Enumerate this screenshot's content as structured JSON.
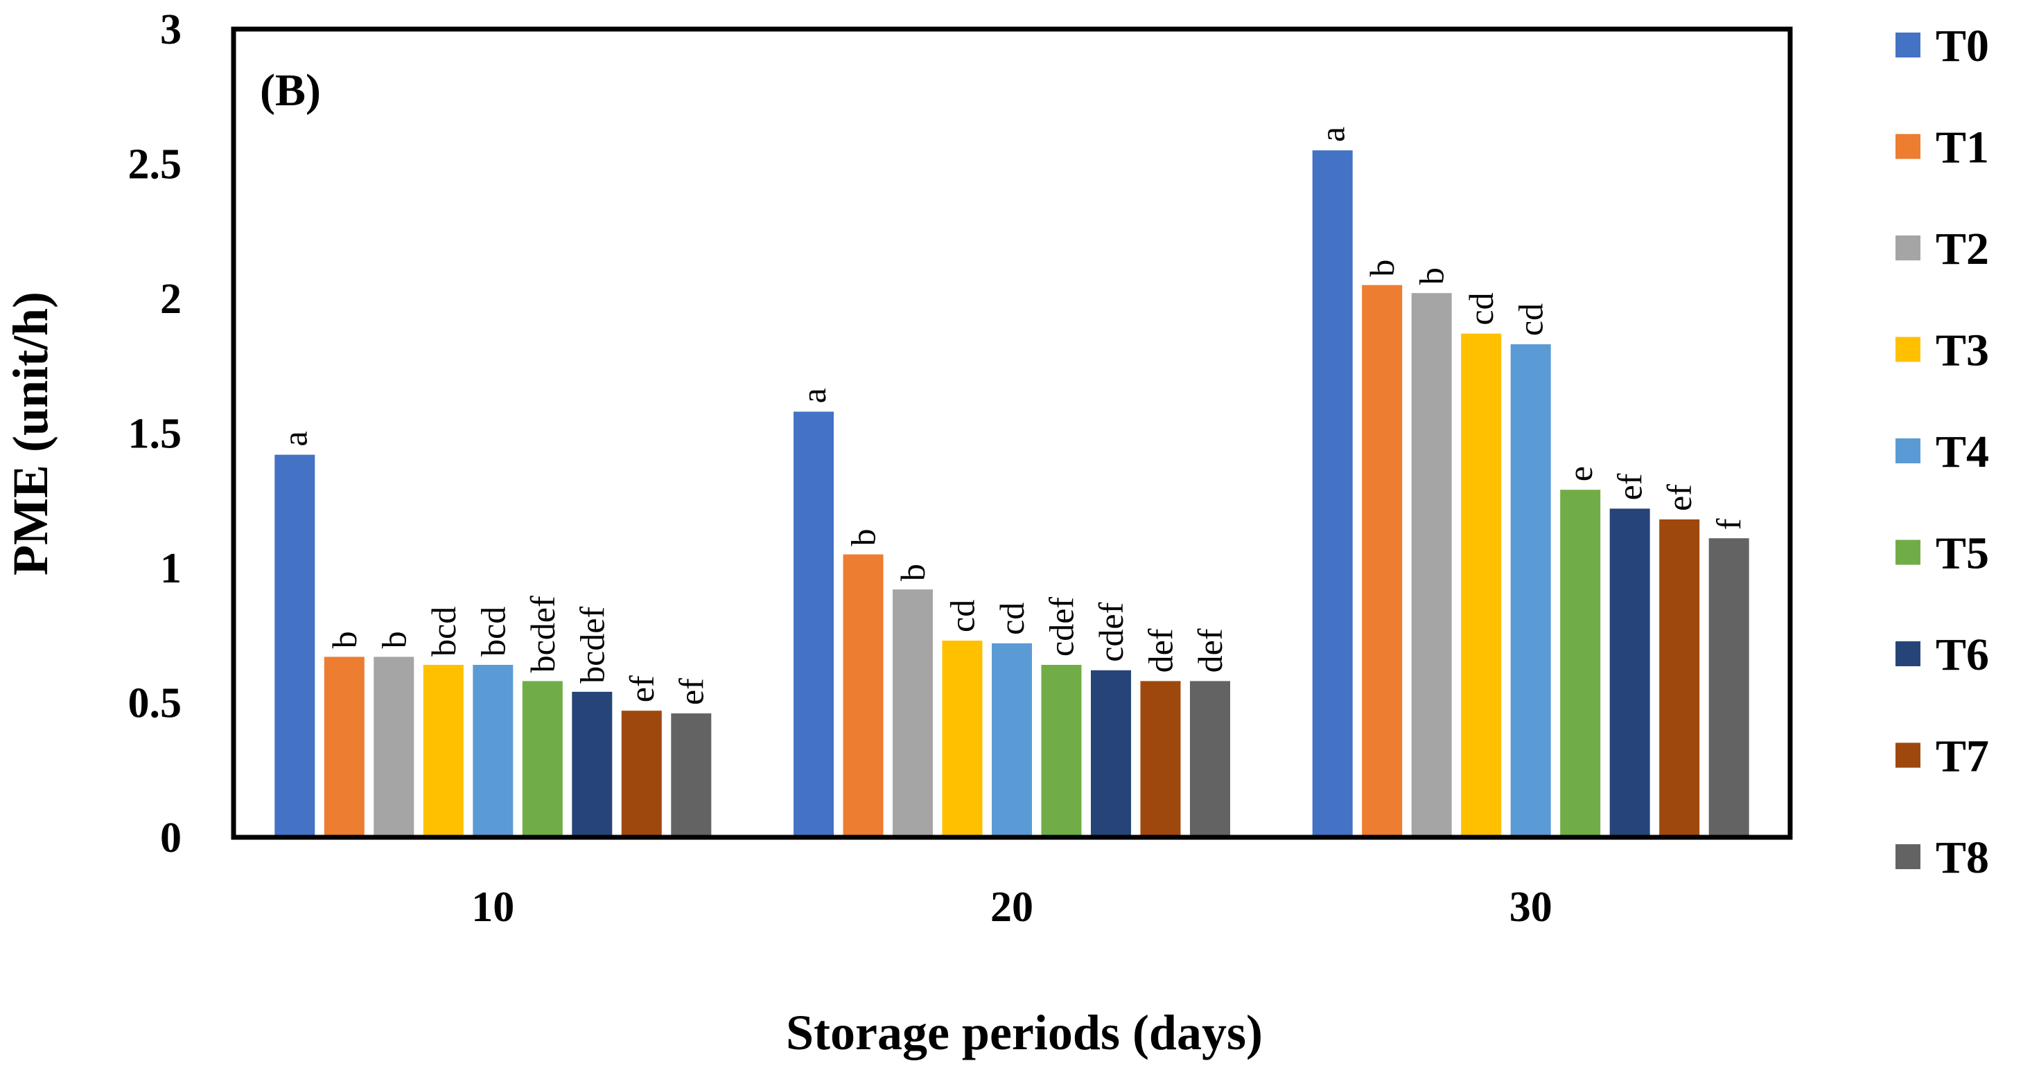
{
  "chart_data": {
    "type": "bar",
    "panel_label": "(B)",
    "xlabel": "Storage periods (days)",
    "ylabel": "PME (unit/h)",
    "ylim": [
      0,
      3
    ],
    "yticks": [
      "0",
      "0.5",
      "1",
      "1.5",
      "2",
      "2.5",
      "3"
    ],
    "ytick_values": [
      0,
      0.5,
      1,
      1.5,
      2,
      2.5,
      3
    ],
    "categories": [
      "10",
      "20",
      "30"
    ],
    "grid": false,
    "legend_position": "right",
    "series": [
      {
        "name": "T0",
        "color": "#4472C4",
        "values": [
          1.42,
          1.58,
          2.55
        ],
        "letters": [
          "a",
          "a",
          "a"
        ]
      },
      {
        "name": "T1",
        "color": "#ED7D31",
        "values": [
          0.67,
          1.05,
          2.05
        ],
        "letters": [
          "b",
          "b",
          "b"
        ]
      },
      {
        "name": "T2",
        "color": "#A5A5A5",
        "values": [
          0.67,
          0.92,
          2.02
        ],
        "letters": [
          "b",
          "b",
          "b"
        ]
      },
      {
        "name": "T3",
        "color": "#FFC000",
        "values": [
          0.64,
          0.73,
          1.87
        ],
        "letters": [
          "bcd",
          "cd",
          "cd"
        ]
      },
      {
        "name": "T4",
        "color": "#5B9BD5",
        "values": [
          0.64,
          0.72,
          1.83
        ],
        "letters": [
          "bcd",
          "cd",
          "cd"
        ]
      },
      {
        "name": "T5",
        "color": "#70AD47",
        "values": [
          0.58,
          0.64,
          1.29
        ],
        "letters": [
          "bcdef",
          "cdef",
          "e"
        ]
      },
      {
        "name": "T6",
        "color": "#264478",
        "values": [
          0.54,
          0.62,
          1.22
        ],
        "letters": [
          "bcdef",
          "cdef",
          "ef"
        ]
      },
      {
        "name": "T7",
        "color": "#9E480E",
        "values": [
          0.47,
          0.58,
          1.18
        ],
        "letters": [
          "ef",
          "def",
          "ef"
        ]
      },
      {
        "name": "T8",
        "color": "#636363",
        "values": [
          0.46,
          0.58,
          1.11
        ],
        "letters": [
          "ef",
          "def",
          "f"
        ]
      }
    ]
  }
}
